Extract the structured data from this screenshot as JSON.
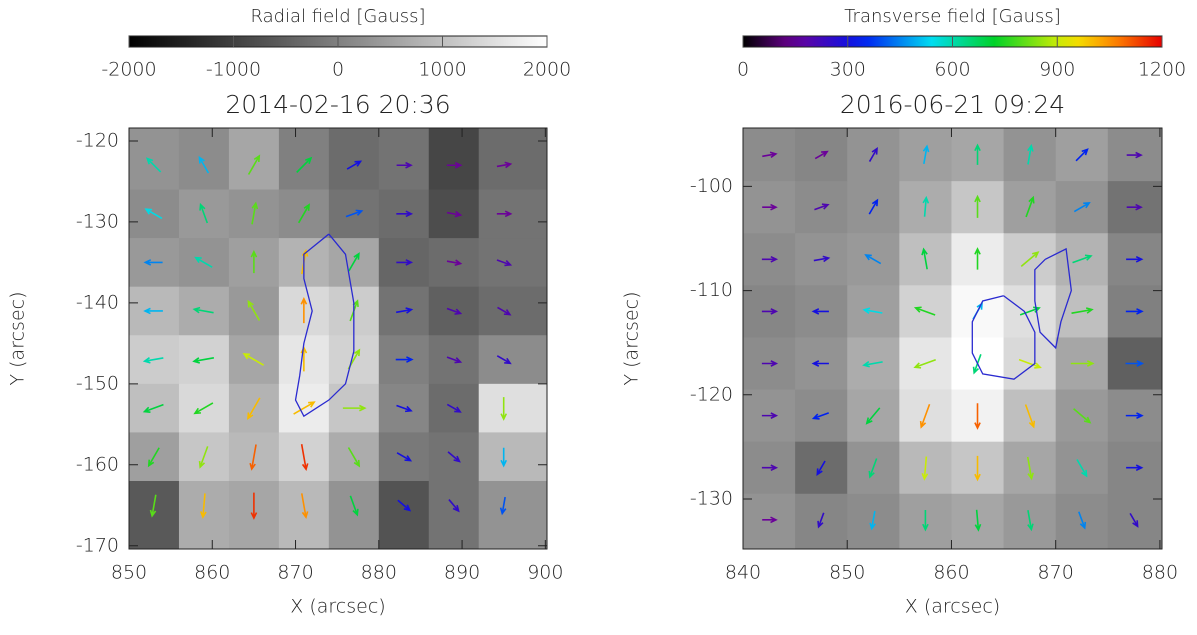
{
  "chart_data": [
    {
      "type": "vector-field",
      "title": "2014-02-16 20:36",
      "x_label": "X (arcsec)",
      "y_label": "Y (arcsec)",
      "colorbar": {
        "label": "Radial field [Gauss]",
        "colormap": "gray",
        "lim": [
          -2000,
          2000
        ],
        "ticks": [
          -2000,
          -1000,
          0,
          1000,
          2000
        ]
      },
      "xlim": [
        850,
        900.2
      ],
      "ylim": [
        -170.4,
        -118.4
      ],
      "xticks": [
        850,
        860,
        870,
        880,
        890,
        900
      ],
      "yticks": [
        -120,
        -130,
        -140,
        -150,
        -160,
        -170
      ],
      "grid_x": [
        853,
        859,
        865,
        871,
        877,
        883,
        889,
        895
      ],
      "grid_y": [
        -123,
        -129,
        -135,
        -141,
        -147,
        -153,
        -159,
        -165
      ],
      "radial_field": [
        [
          300,
          200,
          600,
          0,
          -300,
          -200,
          -900,
          -300
        ],
        [
          200,
          400,
          300,
          200,
          -200,
          -300,
          -800,
          -200
        ],
        [
          400,
          300,
          500,
          800,
          600,
          -400,
          -300,
          -200
        ],
        [
          900,
          700,
          400,
          1400,
          1200,
          -200,
          -500,
          -300
        ],
        [
          1200,
          1300,
          600,
          1600,
          1300,
          0,
          -200,
          200
        ],
        [
          1000,
          1400,
          800,
          1700,
          1100,
          100,
          -300,
          1500
        ],
        [
          500,
          1100,
          900,
          1300,
          700,
          -100,
          -200,
          900
        ],
        [
          -600,
          700,
          600,
          900,
          300,
          -700,
          -200,
          300
        ]
      ],
      "transverse_magnitude": [
        [
          600,
          500,
          800,
          700,
          300,
          200,
          150,
          150
        ],
        [
          550,
          650,
          800,
          750,
          400,
          250,
          150,
          150
        ],
        [
          450,
          600,
          800,
          1000,
          700,
          250,
          150,
          200
        ],
        [
          500,
          650,
          850,
          1050,
          800,
          300,
          200,
          200
        ],
        [
          600,
          700,
          900,
          1000,
          850,
          350,
          200,
          250
        ],
        [
          700,
          750,
          1000,
          1000,
          850,
          300,
          250,
          850
        ],
        [
          750,
          850,
          1100,
          1150,
          800,
          300,
          250,
          500
        ],
        [
          800,
          1000,
          1150,
          1050,
          700,
          300,
          250,
          400
        ]
      ],
      "transverse_angle": [
        [
          135,
          120,
          60,
          45,
          30,
          0,
          0,
          10
        ],
        [
          150,
          110,
          80,
          60,
          20,
          0,
          -10,
          0
        ],
        [
          180,
          150,
          90,
          80,
          60,
          0,
          -10,
          -20
        ],
        [
          180,
          170,
          120,
          90,
          70,
          10,
          -20,
          -30
        ],
        [
          190,
          190,
          150,
          90,
          60,
          0,
          -20,
          -30
        ],
        [
          200,
          210,
          240,
          30,
          0,
          -20,
          -30,
          -90
        ],
        [
          240,
          250,
          260,
          280,
          300,
          -30,
          -40,
          -90
        ],
        [
          260,
          265,
          270,
          280,
          290,
          -40,
          -50,
          -100
        ]
      ],
      "contour_color": "#2a2ad0",
      "contours": [
        {
          "x": [
            874,
            876,
            877,
            877,
            876,
            874,
            871,
            870,
            870.5,
            871,
            872,
            871,
            871,
            874
          ],
          "y": [
            -131.5,
            -134,
            -140,
            -146,
            -150,
            -152,
            -154,
            -152,
            -149,
            -145,
            -141,
            -137,
            -134,
            -131.5
          ]
        }
      ]
    },
    {
      "type": "vector-field",
      "title": "2016-06-21 09:24",
      "x_label": "X (arcsec)",
      "y_label": "Y (arcsec)",
      "colorbar": {
        "label": "Transverse field [Gauss]",
        "colormap": "rainbow",
        "lim": [
          0,
          1200
        ],
        "ticks": [
          0,
          300,
          600,
          900,
          1200
        ]
      },
      "xlim": [
        840,
        880.2
      ],
      "ylim": [
        -134.8,
        -94.4
      ],
      "xticks": [
        840,
        850,
        860,
        870,
        880
      ],
      "yticks": [
        -100,
        -110,
        -120,
        -130
      ],
      "grid_x": [
        842.5,
        847.5,
        852.5,
        857.5,
        862.5,
        867.5,
        872.5,
        877.5
      ],
      "grid_y": [
        -97,
        -102,
        -107,
        -112,
        -117,
        -122,
        -127,
        -132
      ],
      "radial_field": [
        [
          200,
          100,
          300,
          500,
          600,
          300,
          500,
          200
        ],
        [
          300,
          200,
          300,
          700,
          1100,
          500,
          300,
          -200
        ],
        [
          200,
          300,
          400,
          1000,
          1700,
          1200,
          800,
          100
        ],
        [
          100,
          200,
          500,
          1300,
          1900,
          1500,
          1000,
          0
        ],
        [
          200,
          300,
          700,
          1600,
          2000,
          1400,
          600,
          -500
        ],
        [
          300,
          200,
          600,
          1500,
          1800,
          1000,
          400,
          200
        ],
        [
          200,
          -300,
          300,
          900,
          1100,
          600,
          300,
          100
        ],
        [
          300,
          100,
          200,
          500,
          600,
          400,
          200,
          100
        ]
      ],
      "transverse_magnitude": [
        [
          150,
          150,
          250,
          500,
          650,
          600,
          350,
          200
        ],
        [
          150,
          200,
          350,
          600,
          800,
          750,
          450,
          200
        ],
        [
          200,
          250,
          450,
          700,
          750,
          850,
          650,
          300
        ],
        [
          200,
          300,
          550,
          750,
          500,
          700,
          750,
          350
        ],
        [
          200,
          300,
          600,
          850,
          650,
          900,
          850,
          400
        ],
        [
          200,
          350,
          700,
          1050,
          1100,
          1000,
          800,
          350
        ],
        [
          200,
          300,
          650,
          900,
          1000,
          850,
          600,
          300
        ],
        [
          150,
          250,
          500,
          650,
          700,
          650,
          450,
          250
        ]
      ],
      "transverse_angle": [
        [
          10,
          30,
          60,
          80,
          90,
          80,
          45,
          0
        ],
        [
          0,
          20,
          60,
          85,
          90,
          70,
          30,
          0
        ],
        [
          0,
          10,
          150,
          100,
          90,
          40,
          20,
          0
        ],
        [
          0,
          180,
          170,
          160,
          60,
          20,
          10,
          0
        ],
        [
          0,
          180,
          190,
          200,
          250,
          340,
          0,
          0
        ],
        [
          0,
          200,
          230,
          250,
          270,
          290,
          320,
          0
        ],
        [
          0,
          240,
          250,
          265,
          270,
          280,
          300,
          0
        ],
        [
          0,
          250,
          260,
          270,
          275,
          280,
          290,
          300
        ]
      ],
      "contour_color": "#2a2ad0",
      "contours": [
        {
          "x": [
            865,
            867,
            868,
            868,
            866,
            863,
            862,
            862,
            863,
            865
          ],
          "y": [
            -110.5,
            -112,
            -114,
            -117,
            -118.5,
            -118,
            -116,
            -113,
            -111,
            -110.5
          ]
        },
        {
          "x": [
            869,
            871,
            871.5,
            870.5,
            870,
            868.5,
            868,
            868,
            869
          ],
          "y": [
            -107,
            -106,
            -110,
            -113,
            -115.5,
            -114,
            -111,
            -108,
            -107
          ]
        }
      ]
    }
  ]
}
